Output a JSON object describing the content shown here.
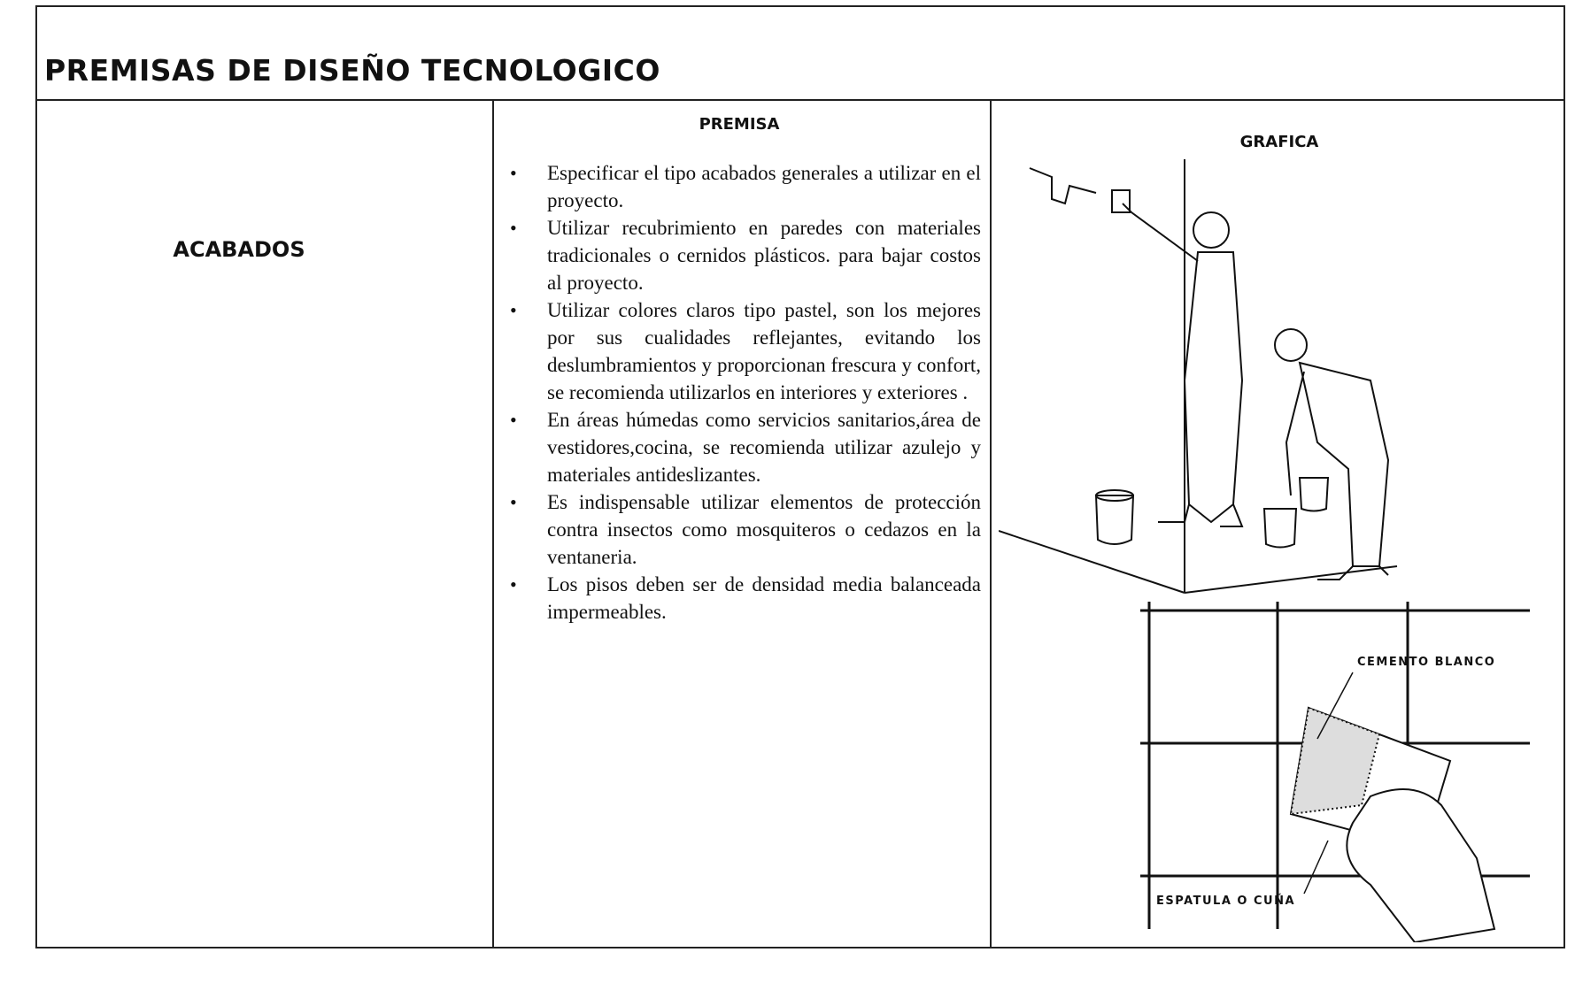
{
  "header": {
    "title": "PREMISAS DE DISEÑO TECNOLOGICO"
  },
  "table": {
    "columns": [
      "PREMISA",
      "GRAFICA"
    ],
    "row_label": "ACABADOS",
    "premisas": [
      "Especificar el tipo acabados generales a utilizar en el proyecto.",
      "Utilizar recubrimiento en paredes con materiales tradicionales o cernidos plásticos. para bajar costos al proyecto.",
      "Utilizar colores claros tipo pastel, son los mejores por sus cualidades reflejantes, evitando los deslumbramientos y proporcionan frescura y confort, se recomienda utilizarlos en interiores y exteriores .",
      "En áreas húmedas como servicios sanitarios,área de vestidores,cocina, se recomienda utilizar azulejo y materiales antideslizantes.",
      "Es indispensable utilizar elementos de protección contra insectos como mosquiteros o cedazos en la ventaneria.",
      "Los pisos deben ser de densidad media balanceada impermeables."
    ],
    "figure_labels": [
      "CEMENTO BLANCO",
      "ESPATULA O CUÑA"
    ]
  }
}
